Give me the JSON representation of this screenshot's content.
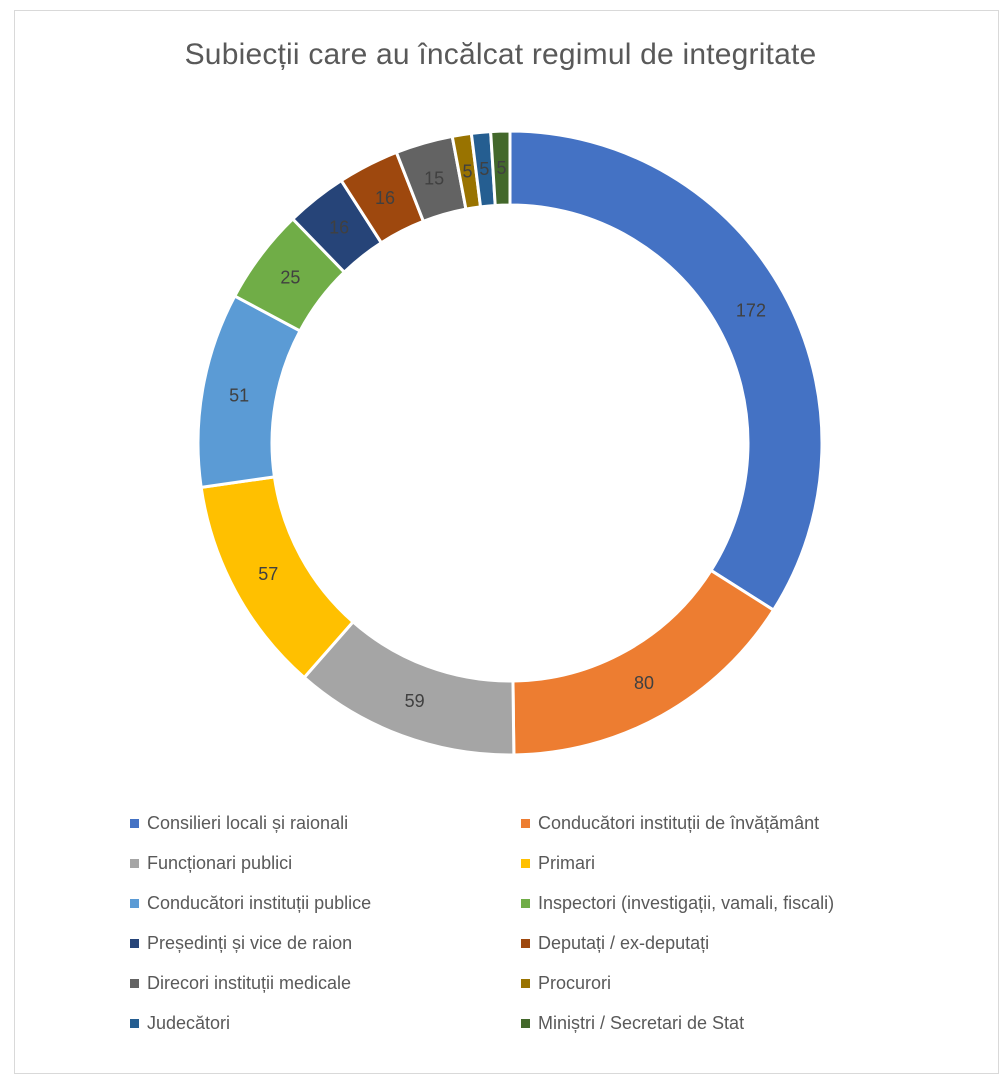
{
  "chart_data": {
    "type": "pie",
    "variant": "donut",
    "title": "Subiecții care au încălcat regimul de integritate",
    "legend_position": "bottom",
    "slices": [
      {
        "name": "Consilieri locali și raionali",
        "value": 172,
        "label": "172",
        "color": "#4472C4"
      },
      {
        "name": "Conducători instituții de învățământ",
        "value": 80,
        "label": "80",
        "color": "#ED7D31"
      },
      {
        "name": "Funcționari publici",
        "value": 59,
        "label": "59",
        "color": "#A5A5A5"
      },
      {
        "name": "Primari",
        "value": 57,
        "label": "57",
        "color": "#FFC000"
      },
      {
        "name": "Conducători instituții publice",
        "value": 51,
        "label": "51",
        "color": "#5B9BD5"
      },
      {
        "name": "Inspectori (investigații, vamali, fiscali)",
        "value": 25,
        "label": "25",
        "color": "#70AD47"
      },
      {
        "name": "Președinți și vice de raion",
        "value": 16,
        "label": "16",
        "color": "#264478"
      },
      {
        "name": "Deputați / ex-deputați",
        "value": 16,
        "label": "16",
        "color": "#9E480E"
      },
      {
        "name": "Direcori instituții medicale",
        "value": 15,
        "label": "15",
        "color": "#636363"
      },
      {
        "name": "Procurori",
        "value": 5,
        "label": "5",
        "color": "#997300"
      },
      {
        "name": "Judecători",
        "value": 5,
        "label": "5",
        "color": "#255E91"
      },
      {
        "name": "Miniștri / Secretari de Stat",
        "value": 5,
        "label": "5",
        "color": "#43682B"
      }
    ]
  }
}
